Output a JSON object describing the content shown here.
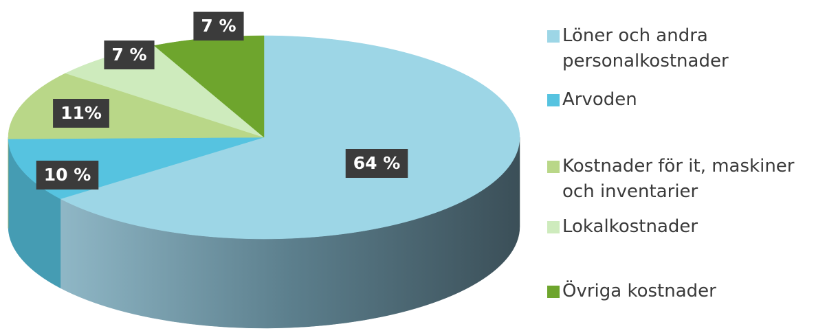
{
  "chart_data": {
    "type": "pie",
    "three_d": true,
    "categories": [
      "Löner och andra personalkostnader",
      "Arvoden",
      "Kostnader för it, maskiner och inventarier",
      "Lokalkostnader",
      "Övriga kostnader"
    ],
    "values": [
      64,
      10,
      11,
      7,
      7
    ],
    "value_labels": [
      "64 %",
      "10 %",
      "11%",
      "7 %",
      "7 %"
    ],
    "colors": [
      "#9dd6e6",
      "#56c3e0",
      "#b9d788",
      "#ceebbd",
      "#6ea52d"
    ],
    "legend": "right"
  }
}
